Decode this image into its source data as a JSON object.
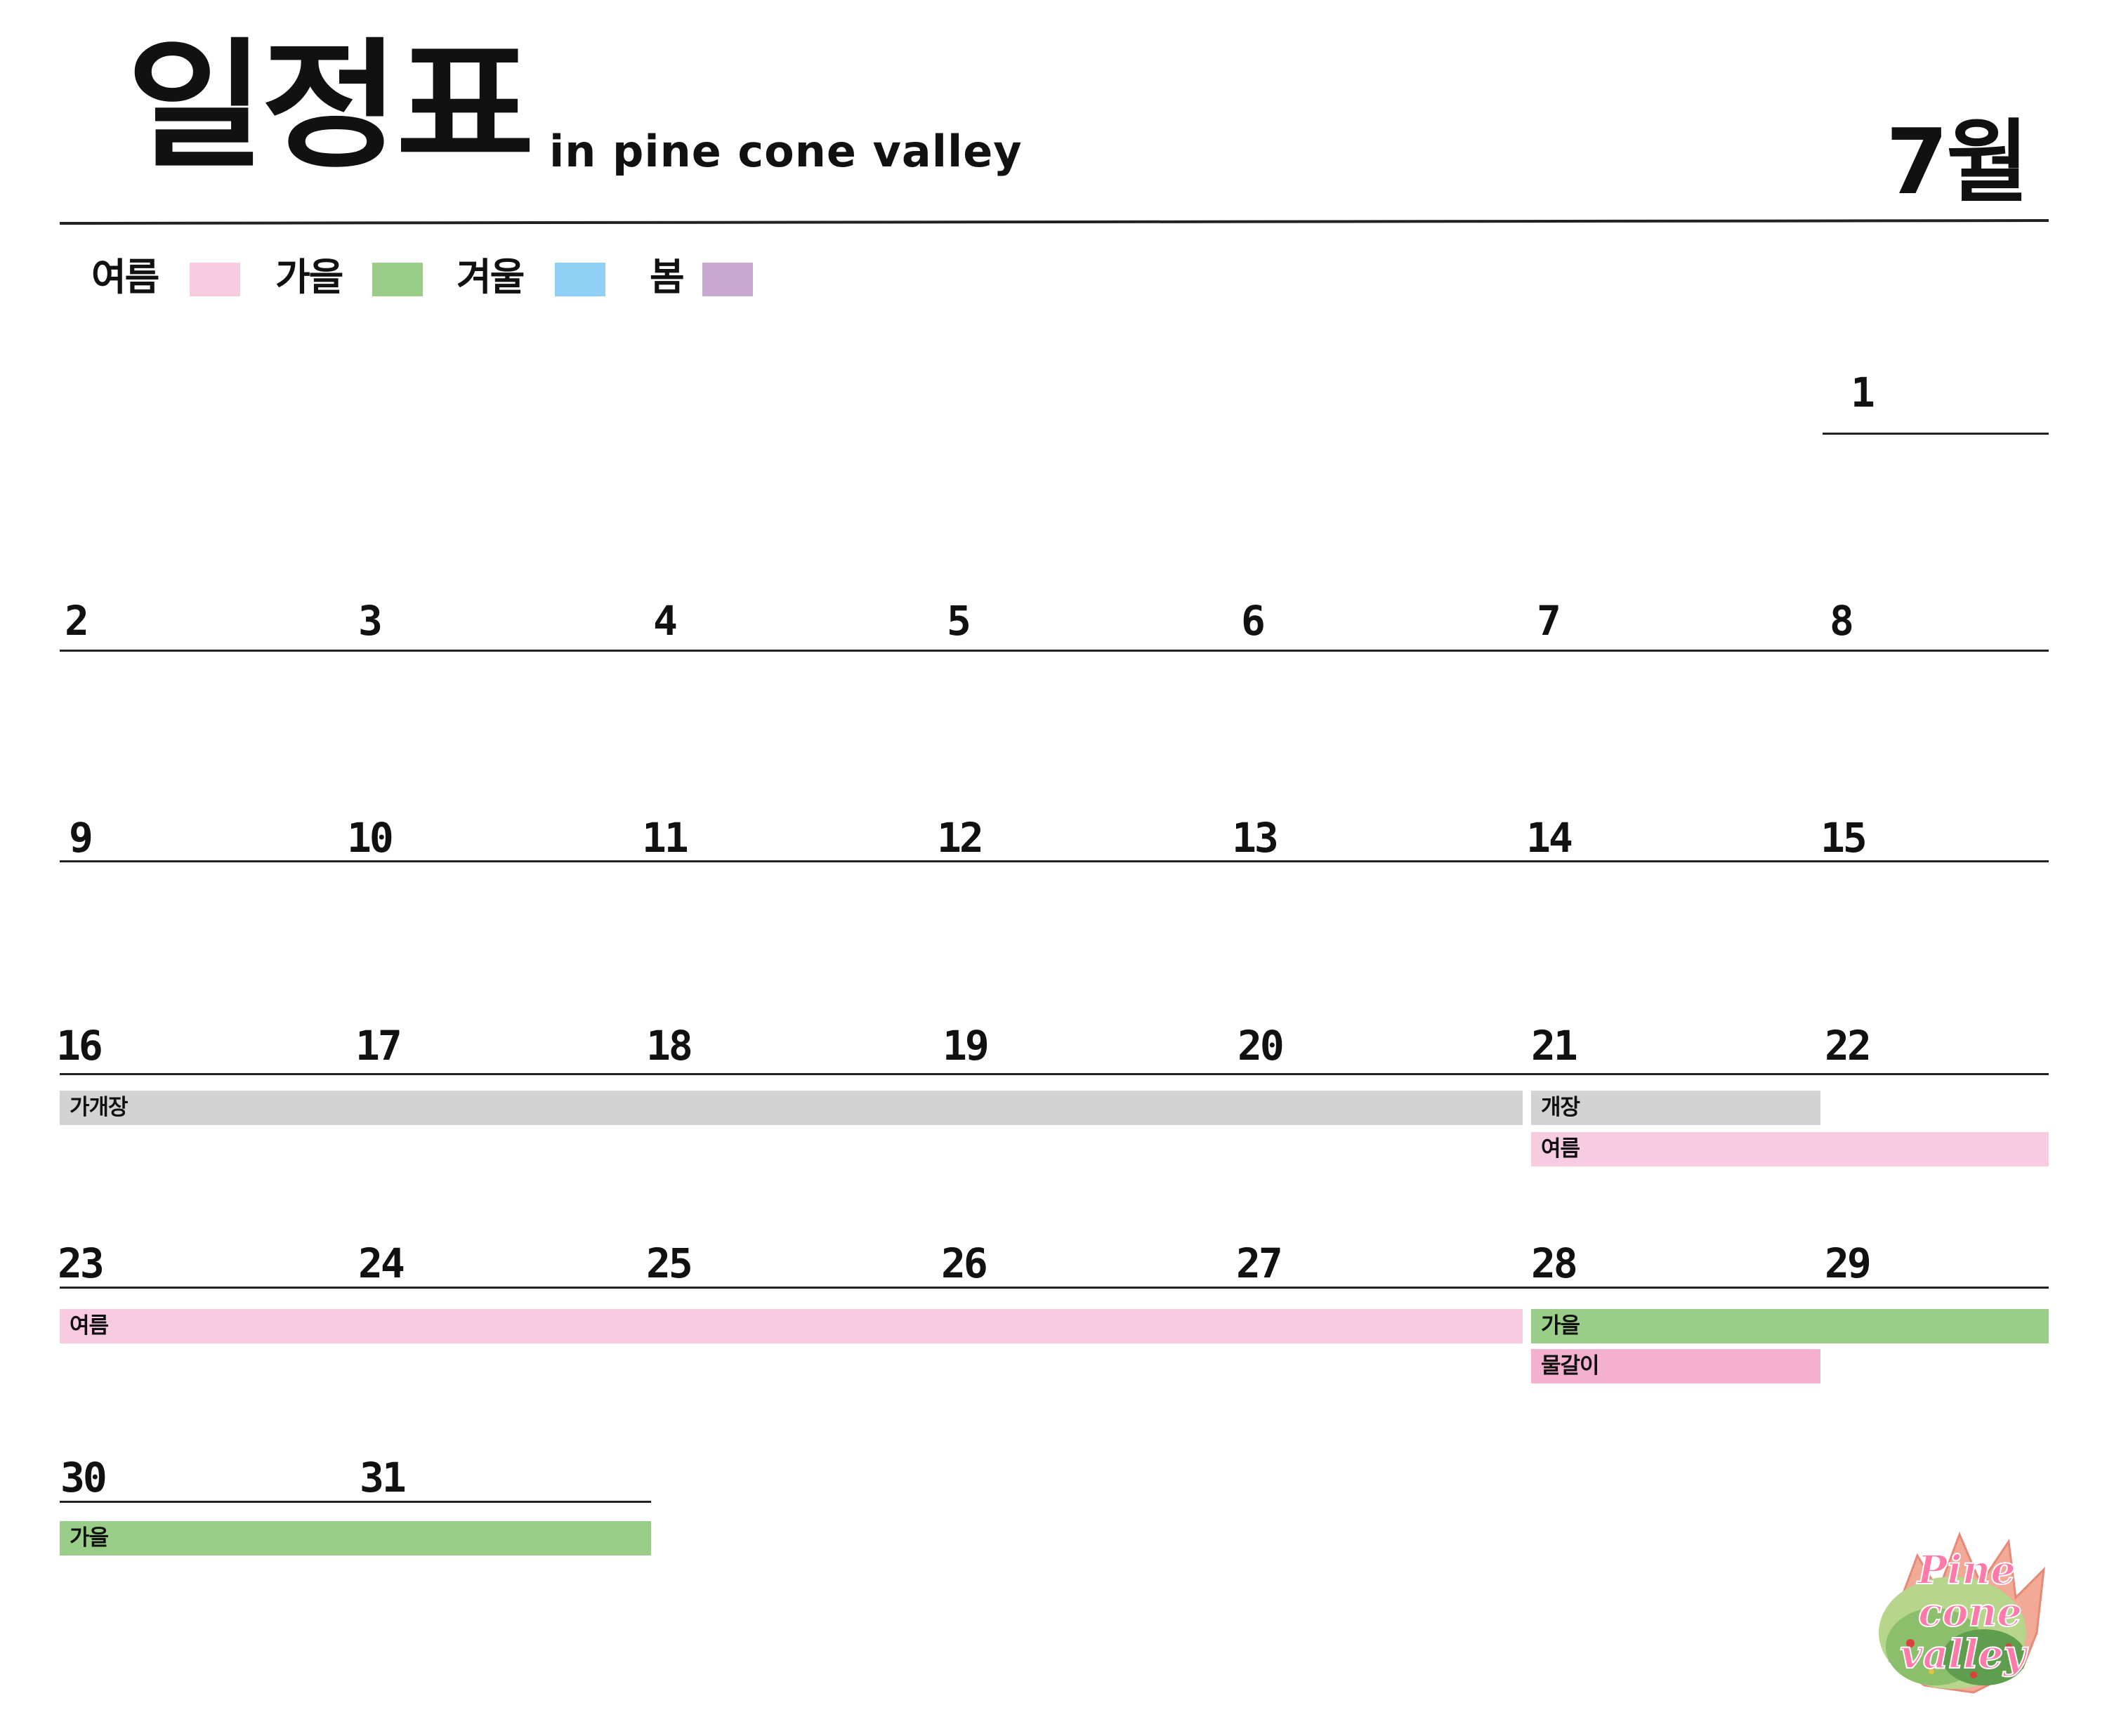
{
  "header": {
    "title": "일정표",
    "subtitle": "in pine cone valley",
    "month": "7월"
  },
  "legend": [
    {
      "label": "여름",
      "color": "#f7cce0"
    },
    {
      "label": "가을",
      "color": "#9acd87"
    },
    {
      "label": "겨울",
      "color": "#8fd0f4"
    },
    {
      "label": "봄",
      "color": "#c9a9d2"
    }
  ],
  "calendar": {
    "days": [
      "1",
      "2",
      "3",
      "4",
      "5",
      "6",
      "7",
      "8",
      "9",
      "10",
      "11",
      "12",
      "13",
      "14",
      "15",
      "16",
      "17",
      "18",
      "19",
      "20",
      "21",
      "22",
      "23",
      "24",
      "25",
      "26",
      "27",
      "28",
      "29",
      "30",
      "31"
    ],
    "events": [
      {
        "label": "가개장",
        "color": "#d3d3d3"
      },
      {
        "label": "개장",
        "color": "#d3d3d3"
      },
      {
        "label": "여름",
        "color": "#f7cce0"
      },
      {
        "label": "여름",
        "color": "#f7cce0"
      },
      {
        "label": "가을",
        "color": "#9acd87"
      },
      {
        "label": "물갈이",
        "color": "#f3b1cf"
      },
      {
        "label": "가을",
        "color": "#9acd87"
      }
    ]
  },
  "logo": {
    "line1": "Pine",
    "line2": "cone",
    "line3": "valley"
  }
}
